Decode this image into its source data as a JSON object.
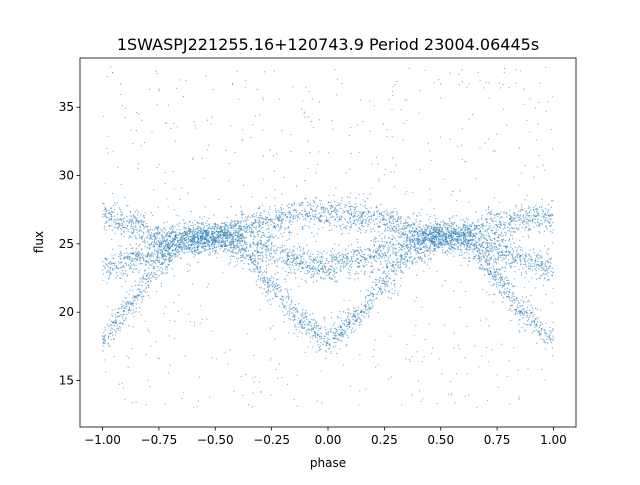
{
  "chart_data": {
    "type": "scatter",
    "title": "1SWASPJ221255.16+120743.9 Period 23004.06445s",
    "xlabel": "phase",
    "ylabel": "flux",
    "xlim": [
      -1.1,
      1.1
    ],
    "ylim": [
      11.6,
      38.6
    ],
    "xticks": [
      -1.0,
      -0.75,
      -0.5,
      -0.25,
      0.0,
      0.25,
      0.5,
      0.75,
      1.0
    ],
    "xtick_labels": [
      "−1.00",
      "−0.75",
      "−0.50",
      "−0.25",
      "0.00",
      "0.25",
      "0.50",
      "0.75",
      "1.00"
    ],
    "yticks": [
      15,
      20,
      25,
      30,
      35
    ],
    "ytick_labels": [
      "15",
      "20",
      "25",
      "30",
      "35"
    ],
    "grid": false,
    "point_color": "#1f77b4",
    "point_count_approx": 60000,
    "series": [
      {
        "phase": [
          -1.0,
          -0.875,
          -0.75,
          -0.625,
          -0.5,
          -0.375,
          -0.25,
          -0.125,
          0.0,
          0.125,
          0.25,
          0.375,
          0.5,
          0.625,
          0.75,
          0.875,
          1.0
        ],
        "flux": [
          27.0,
          26.4,
          25.5,
          25.6,
          25.6,
          26.3,
          26.8,
          27.2,
          27.2,
          27.1,
          26.7,
          26.0,
          25.6,
          25.9,
          26.4,
          26.9,
          27.0
        ]
      },
      {
        "phase": [
          -1.0,
          -0.875,
          -0.75,
          -0.625,
          -0.5,
          -0.375,
          -0.25,
          -0.125,
          0.0,
          0.125,
          0.25,
          0.375,
          0.5,
          0.625,
          0.75,
          0.875,
          1.0
        ],
        "flux": [
          23.2,
          23.8,
          24.6,
          25.4,
          25.6,
          25.2,
          24.5,
          23.7,
          23.3,
          23.8,
          24.5,
          25.2,
          25.6,
          25.3,
          24.5,
          23.7,
          23.2
        ]
      },
      {
        "phase": [
          -1.0,
          -0.875,
          -0.75,
          -0.625,
          -0.5,
          -0.375,
          -0.25,
          -0.125,
          0.0,
          0.125,
          0.25,
          0.375,
          0.5,
          0.625,
          0.75,
          0.875,
          1.0
        ],
        "flux": [
          18.0,
          20.5,
          23.7,
          25.0,
          25.4,
          24.5,
          22.0,
          19.5,
          18.0,
          19.5,
          22.3,
          24.4,
          25.5,
          25.0,
          22.5,
          19.8,
          18.0
        ]
      }
    ]
  }
}
